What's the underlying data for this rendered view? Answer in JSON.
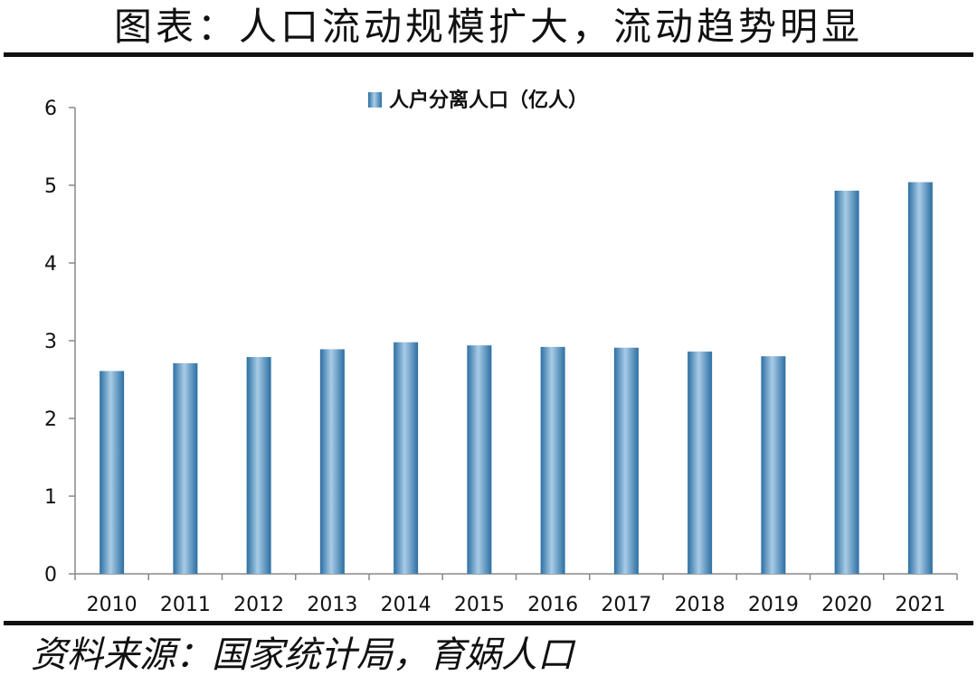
{
  "title": "图表：人口流动规模扩大，流动趋势明显",
  "source": "资料来源：国家统计局，育娲人口",
  "colors": {
    "bar_main": "#4a90c4",
    "bar_light": "#a9cce6",
    "bar_dark": "#2c6fa3",
    "axis": "#888888",
    "text": "#111111"
  },
  "chart_data": {
    "type": "bar",
    "categories": [
      "2010",
      "2011",
      "2012",
      "2013",
      "2014",
      "2015",
      "2016",
      "2017",
      "2018",
      "2019",
      "2020",
      "2021"
    ],
    "series": [
      {
        "name": "人户分离人口（亿人）",
        "values": [
          2.61,
          2.71,
          2.79,
          2.89,
          2.98,
          2.94,
          2.92,
          2.91,
          2.86,
          2.8,
          4.93,
          5.04
        ]
      }
    ],
    "ylim": [
      0,
      6
    ],
    "yticks": [
      0,
      1,
      2,
      3,
      4,
      5,
      6
    ],
    "xlabel": "",
    "ylabel": "",
    "legend": "top-center",
    "grid": false
  }
}
